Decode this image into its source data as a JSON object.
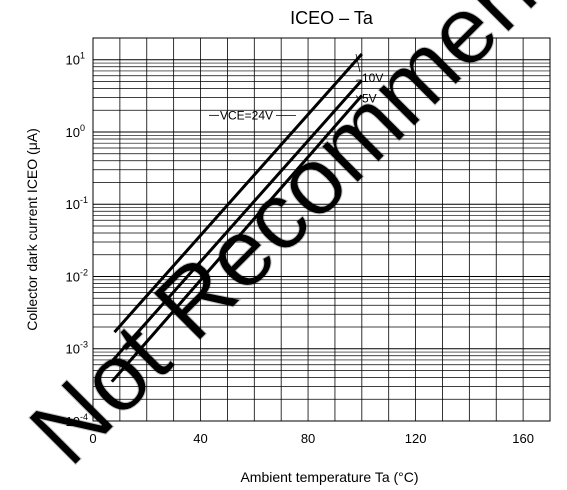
{
  "watermark": "Not Recommended for New Designs",
  "chart_data": {
    "type": "line",
    "title": "ICEO – Ta",
    "xlabel": "Ambient temperature   Ta   (°C)",
    "ylabel": "Collector dark current   ICEO   (μA)",
    "xlim": [
      0,
      170
    ],
    "ylim": [
      0.0001,
      20
    ],
    "yscale": "log",
    "grid": true,
    "x_ticks": [
      {
        "value": 0,
        "label": "0"
      },
      {
        "value": 40,
        "label": "40"
      },
      {
        "value": 80,
        "label": "80"
      },
      {
        "value": 120,
        "label": "120"
      },
      {
        "value": 160,
        "label": "160"
      }
    ],
    "y_ticks": [
      {
        "value": 10,
        "base": "10",
        "exp": "1"
      },
      {
        "value": 1,
        "base": "10",
        "exp": "0"
      },
      {
        "value": 0.1,
        "base": "10",
        "exp": "-1"
      },
      {
        "value": 0.01,
        "base": "10",
        "exp": "-2"
      },
      {
        "value": 0.001,
        "base": "10",
        "exp": "-3"
      },
      {
        "value": 0.0001,
        "base": "10",
        "exp": "-4"
      }
    ],
    "series": [
      {
        "name": "VCE=24V",
        "x": [
          8,
          100
        ],
        "y": [
          0.0017,
          12
        ]
      },
      {
        "name": "10V",
        "x": [
          5,
          100
        ],
        "y": [
          0.00055,
          5.2
        ]
      },
      {
        "name": "5V",
        "x": [
          7,
          100
        ],
        "y": [
          0.00035,
          3.2
        ]
      }
    ]
  }
}
